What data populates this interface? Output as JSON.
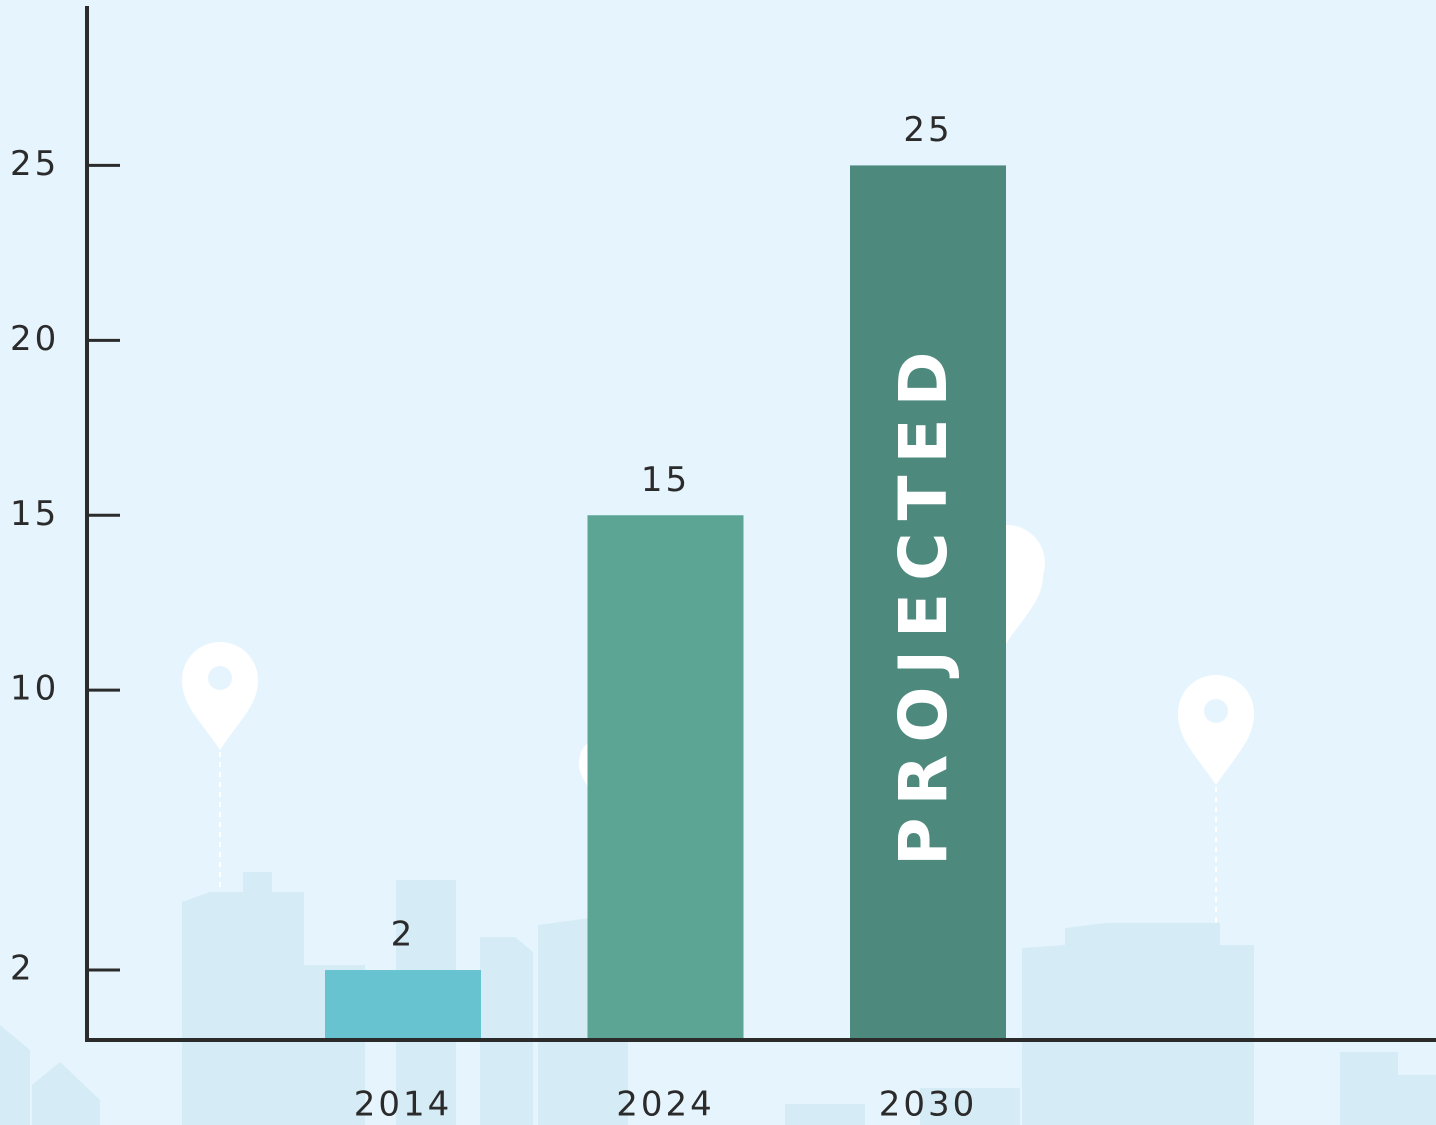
{
  "chart_data": {
    "type": "bar",
    "categories": [
      "2014",
      "2024",
      "2030"
    ],
    "values": [
      2,
      15,
      25
    ],
    "colors": [
      "#67c3d0",
      "#5ca595",
      "#4e897e"
    ],
    "ylim": [
      0,
      29.5
    ],
    "yticks": [
      2,
      10,
      15,
      20,
      25
    ],
    "annotation": "PROJECTED"
  }
}
